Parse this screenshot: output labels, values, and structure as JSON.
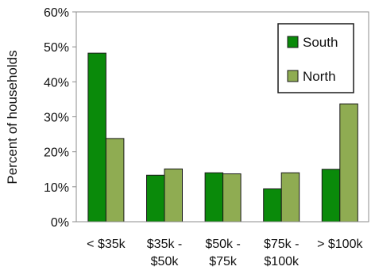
{
  "chart_data": {
    "type": "bar",
    "ylabel": "Percent of households",
    "xlabel": "",
    "title": "",
    "categories": [
      [
        "< $35k"
      ],
      [
        "$35k -",
        "$50k"
      ],
      [
        "$50k -",
        "$75k"
      ],
      [
        "$75k -",
        "$100k"
      ],
      [
        "> $100k"
      ]
    ],
    "series": [
      {
        "name": "South",
        "color": "#0a8a0a",
        "values": [
          48.2,
          13.3,
          14.0,
          9.4,
          15.0
        ]
      },
      {
        "name": "North",
        "color": "#8fac52",
        "values": [
          23.8,
          15.1,
          13.7,
          14.0,
          33.7
        ]
      }
    ],
    "ylim": [
      0,
      60
    ],
    "yticks": [
      0,
      10,
      20,
      30,
      40,
      50,
      60
    ],
    "ytick_format": "percent",
    "grid": false,
    "legend_position": "top-right"
  }
}
